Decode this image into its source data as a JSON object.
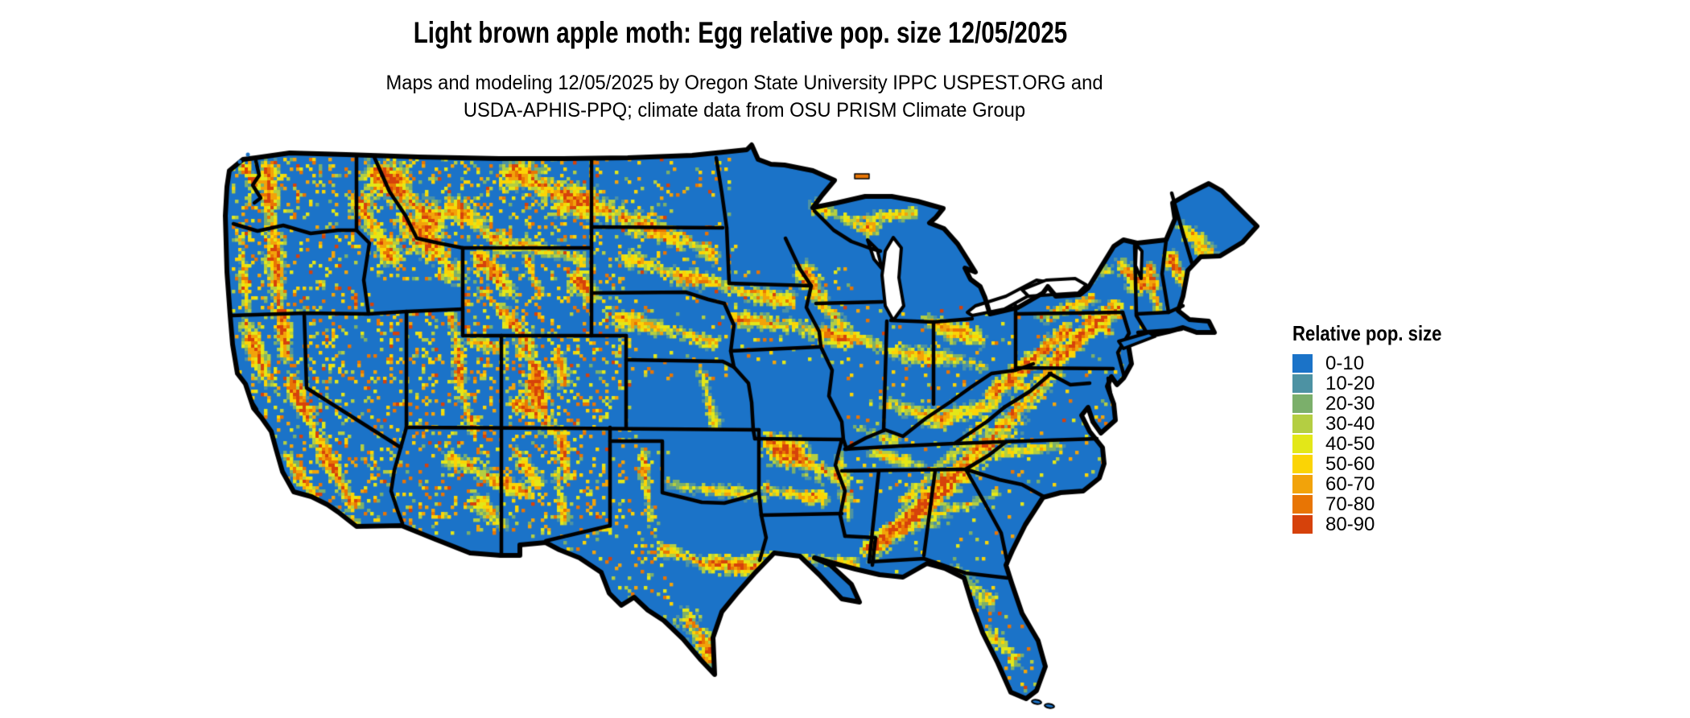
{
  "title": "Light brown apple moth: Egg relative pop. size 12/05/2025",
  "subtitle_line1": "Maps and modeling 12/05/2025 by Oregon State University IPPC USPEST.ORG and",
  "subtitle_line2": "USDA-APHIS-PPQ; climate data from OSU PRISM Climate Group",
  "legend": {
    "title": "Relative pop. size",
    "classes": [
      {
        "label": "0-10",
        "color": "#1B73C8"
      },
      {
        "label": "10-20",
        "color": "#4D92A3"
      },
      {
        "label": "20-30",
        "color": "#7BAF6B"
      },
      {
        "label": "30-40",
        "color": "#B4CE42"
      },
      {
        "label": "40-50",
        "color": "#E3E718"
      },
      {
        "label": "50-60",
        "color": "#FBD405"
      },
      {
        "label": "60-70",
        "color": "#F2A30A"
      },
      {
        "label": "70-80",
        "color": "#E87504"
      },
      {
        "label": "80-90",
        "color": "#D6420B"
      }
    ]
  },
  "map": {
    "region": "contiguous United States",
    "base_color": "#1B73C8",
    "border_color": "#000000",
    "water_color": "#FFFFFF"
  }
}
